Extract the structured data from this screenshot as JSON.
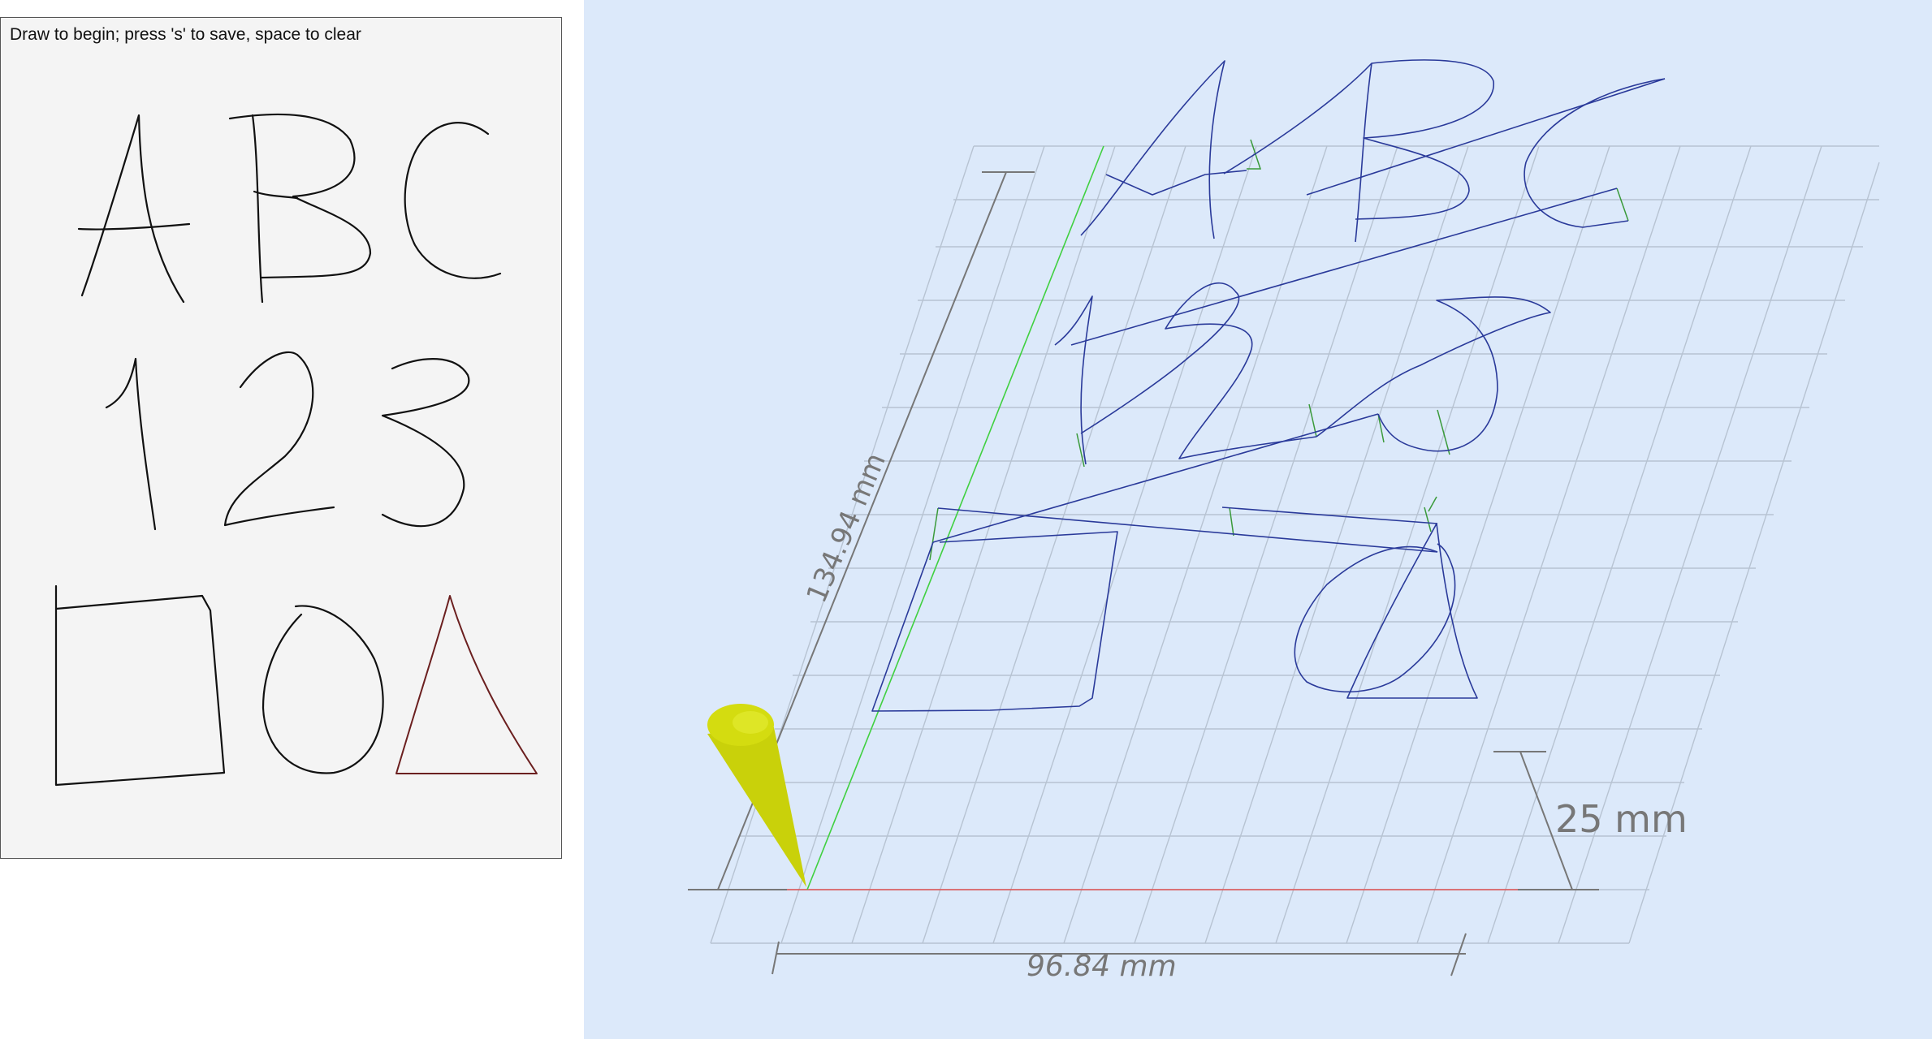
{
  "sketch_panel": {
    "instructions": "Draw to begin; press 's' to save, space to clear",
    "stroke_color": "#111111",
    "active_stroke_color": "#6b1f1f",
    "background": "#f4f4f4"
  },
  "viewer_panel": {
    "background": "#dce9fa",
    "path_color": "#2a3a9a",
    "travel_color": "#3a9a3a",
    "x_axis_color": "#e05050",
    "y_axis_color": "#40d040",
    "tool_color": "#d4dc10",
    "dimensions": {
      "width_label": "96.84 mm",
      "depth_label": "134.94 mm",
      "height_label": "25 mm"
    }
  }
}
